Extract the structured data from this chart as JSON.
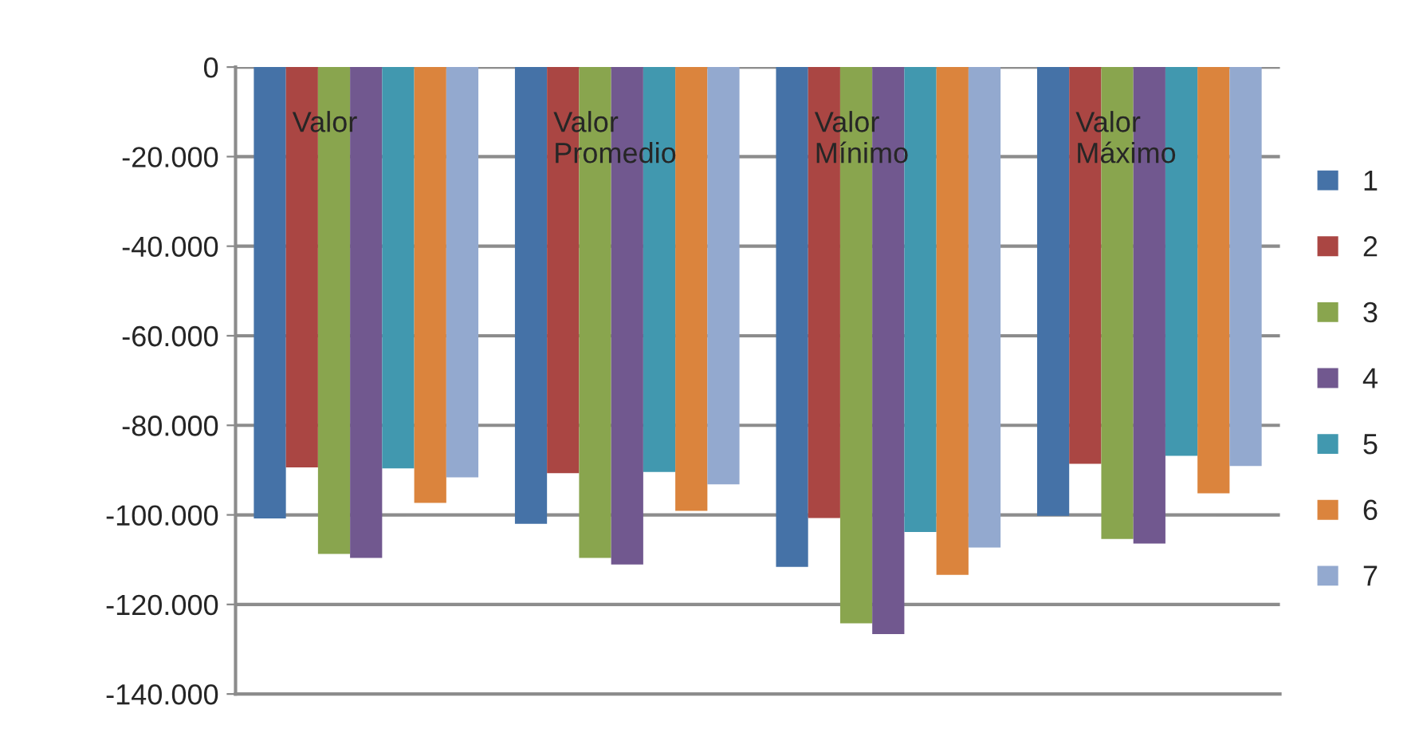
{
  "chart_data": {
    "type": "bar",
    "categories": [
      "Valor",
      "Valor Promedio",
      "Valor Mínimo",
      "Valor Máximo"
    ],
    "series": [
      {
        "name": "1",
        "color": "#4572a7",
        "values": [
          -100800,
          -102000,
          -111600,
          -100200
        ]
      },
      {
        "name": "2",
        "color": "#aa4643",
        "values": [
          -89400,
          -90700,
          -100700,
          -88600
        ]
      },
      {
        "name": "3",
        "color": "#89a54e",
        "values": [
          -108700,
          -109600,
          -124200,
          -105400
        ]
      },
      {
        "name": "4",
        "color": "#71588f",
        "values": [
          -109600,
          -111100,
          -126600,
          -106400
        ]
      },
      {
        "name": "5",
        "color": "#4198af",
        "values": [
          -89600,
          -90400,
          -103800,
          -86800
        ]
      },
      {
        "name": "6",
        "color": "#db843d",
        "values": [
          -97300,
          -99100,
          -113400,
          -95200
        ]
      },
      {
        "name": "7",
        "color": "#93a9cf",
        "values": [
          -91600,
          -93200,
          -107300,
          -89100
        ]
      }
    ],
    "ylim": [
      -140000,
      0
    ],
    "yticks": [
      {
        "value": -140000,
        "label": "-140.000"
      },
      {
        "value": -120000,
        "label": "-120.000"
      },
      {
        "value": -100000,
        "label": "-100.000"
      },
      {
        "value": -80000,
        "label": "-80.000"
      },
      {
        "value": -60000,
        "label": "-60.000"
      },
      {
        "value": -40000,
        "label": "-40.000"
      },
      {
        "value": -20000,
        "label": "-20.000"
      },
      0
    ],
    "grid": "y",
    "legend": "right"
  }
}
